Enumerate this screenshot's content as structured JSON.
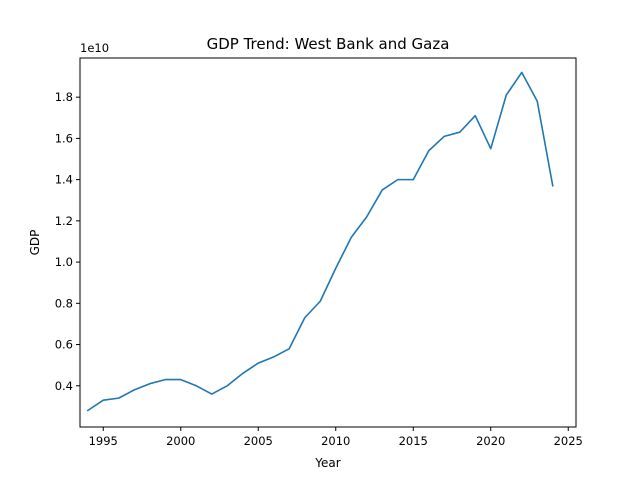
{
  "chart_data": {
    "type": "line",
    "title": "GDP Trend: West Bank and Gaza",
    "xlabel": "Year",
    "ylabel": "GDP",
    "offset_text": "1e10",
    "xlim": [
      1993.5,
      2025.5
    ],
    "ylim": [
      0.2,
      1.99
    ],
    "x_ticks": [
      1995,
      2000,
      2005,
      2010,
      2015,
      2020,
      2025
    ],
    "x_tick_labels": [
      "1995",
      "2000",
      "2005",
      "2010",
      "2015",
      "2020",
      "2025"
    ],
    "y_ticks": [
      0.4,
      0.6,
      0.8,
      1.0,
      1.2,
      1.4,
      1.6,
      1.8
    ],
    "y_tick_labels": [
      "0.4",
      "0.6",
      "0.8",
      "1.0",
      "1.2",
      "1.4",
      "1.6",
      "1.8"
    ],
    "grid": false,
    "legend": "none",
    "line_color": "#1f77b4",
    "series": [
      {
        "x": [
          1994,
          1995,
          1996,
          1997,
          1998,
          1999,
          2000,
          2001,
          2002,
          2003,
          2004,
          2005,
          2006,
          2007,
          2008,
          2009,
          2010,
          2011,
          2012,
          2013,
          2014,
          2015,
          2016,
          2017,
          2018,
          2019,
          2020,
          2021,
          2022,
          2023,
          2024
        ],
        "values": [
          0.28,
          0.33,
          0.34,
          0.38,
          0.41,
          0.43,
          0.43,
          0.4,
          0.36,
          0.4,
          0.46,
          0.51,
          0.54,
          0.58,
          0.73,
          0.81,
          0.97,
          1.12,
          1.22,
          1.35,
          1.4,
          1.4,
          1.54,
          1.61,
          1.63,
          1.71,
          1.55,
          1.81,
          1.92,
          1.78,
          1.37
        ]
      }
    ]
  }
}
